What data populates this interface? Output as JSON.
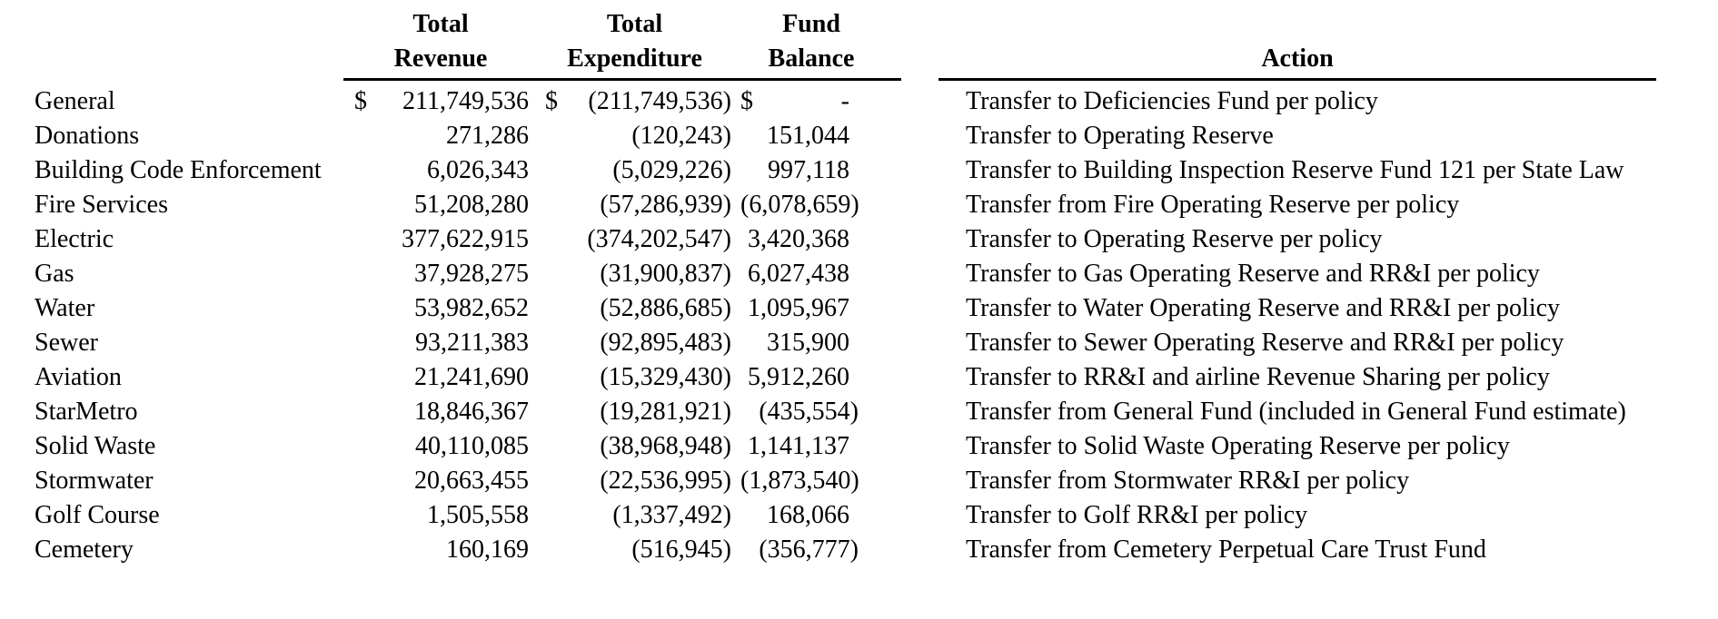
{
  "table": {
    "headers": {
      "revenue": [
        "Total",
        "Revenue"
      ],
      "expenditure": [
        "Total",
        "Expenditure"
      ],
      "balance": [
        "Fund",
        "Balance"
      ],
      "action": "Action"
    },
    "rows": [
      {
        "fund": "General",
        "revenue_currency": "$",
        "revenue": "211,749,536",
        "expenditure_currency": "$",
        "expenditure": "(211,749,536)",
        "balance_currency": "$",
        "balance": "-",
        "action": "Transfer to Deficiencies Fund per policy"
      },
      {
        "fund": "Donations",
        "revenue": "271,286",
        "expenditure": "(120,243)",
        "balance": "151,044",
        "action": "Transfer to Operating Reserve"
      },
      {
        "fund": "Building Code Enforcement",
        "revenue": "6,026,343",
        "expenditure": "(5,029,226)",
        "balance": "997,118",
        "action": "Transfer to Building Inspection Reserve Fund 121 per State Law"
      },
      {
        "fund": "Fire Services",
        "revenue": "51,208,280",
        "expenditure": "(57,286,939)",
        "balance": "(6,078,659)",
        "action": "Transfer from Fire Operating Reserve per policy"
      },
      {
        "fund": "Electric",
        "revenue": "377,622,915",
        "expenditure": "(374,202,547)",
        "balance": "3,420,368",
        "action": "Transfer to Operating Reserve per policy"
      },
      {
        "fund": "Gas",
        "revenue": "37,928,275",
        "expenditure": "(31,900,837)",
        "balance": "6,027,438",
        "action": "Transfer to Gas Operating Reserve and RR&I per policy"
      },
      {
        "fund": "Water",
        "revenue": "53,982,652",
        "expenditure": "(52,886,685)",
        "balance": "1,095,967",
        "action": "Transfer to Water Operating Reserve and RR&I per policy"
      },
      {
        "fund": "Sewer",
        "revenue": "93,211,383",
        "expenditure": "(92,895,483)",
        "balance": "315,900",
        "action": "Transfer to Sewer Operating Reserve and RR&I per policy"
      },
      {
        "fund": "Aviation",
        "revenue": "21,241,690",
        "expenditure": "(15,329,430)",
        "balance": "5,912,260",
        "action": "Transfer to RR&I and airline Revenue Sharing per policy"
      },
      {
        "fund": "StarMetro",
        "revenue": "18,846,367",
        "expenditure": "(19,281,921)",
        "balance": "(435,554)",
        "action": "Transfer from General Fund (included in General Fund estimate)"
      },
      {
        "fund": "Solid Waste",
        "revenue": "40,110,085",
        "expenditure": "(38,968,948)",
        "balance": "1,141,137",
        "action": "Transfer to Solid Waste Operating Reserve per policy"
      },
      {
        "fund": "Stormwater",
        "revenue": "20,663,455",
        "expenditure": "(22,536,995)",
        "balance": "(1,873,540)",
        "action": "Transfer from Stormwater RR&I per policy"
      },
      {
        "fund": "Golf Course",
        "revenue": "1,505,558",
        "expenditure": "(1,337,492)",
        "balance": "168,066",
        "action": "Transfer to Golf RR&I per policy"
      },
      {
        "fund": "Cemetery",
        "revenue": "160,169",
        "expenditure": "(516,945)",
        "balance": "(356,777)",
        "action": "Transfer from Cemetery Perpetual Care Trust Fund"
      }
    ]
  },
  "colors": {
    "text": "#000000",
    "background": "#ffffff",
    "rule": "#000000"
  }
}
